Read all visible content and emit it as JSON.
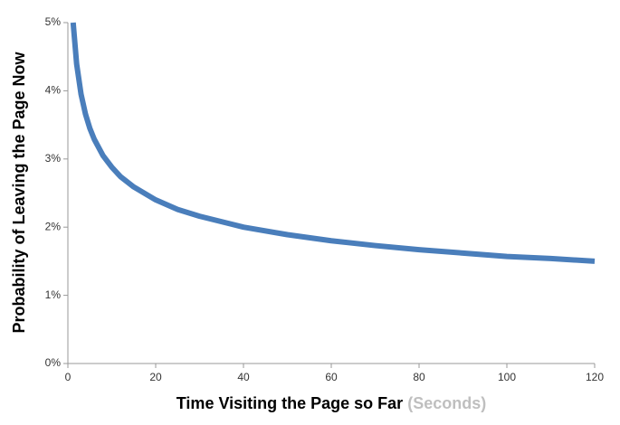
{
  "chart_data": {
    "type": "line",
    "xlabel": "Time Visiting the Page so Far",
    "xlabel_unit": "(Seconds)",
    "ylabel": "Probability of Leaving  the Page Now",
    "x": [
      1.2,
      2,
      3,
      4,
      5,
      6,
      8,
      10,
      12,
      15,
      20,
      25,
      30,
      40,
      50,
      60,
      70,
      80,
      90,
      100,
      110,
      120
    ],
    "series": [
      {
        "name": "Probability of leaving",
        "color": "#4a7ebb",
        "values": [
          5.0,
          4.39,
          3.95,
          3.66,
          3.45,
          3.29,
          3.05,
          2.88,
          2.74,
          2.59,
          2.4,
          2.26,
          2.16,
          2.0,
          1.89,
          1.8,
          1.73,
          1.67,
          1.62,
          1.57,
          1.54,
          1.5
        ]
      }
    ],
    "xlim": [
      0,
      120
    ],
    "xticks": [
      0,
      20,
      40,
      60,
      80,
      100,
      120
    ],
    "ylim": [
      0,
      5
    ],
    "yticks": [
      {
        "value": 0,
        "label": "0%"
      },
      {
        "value": 1,
        "label": "1%"
      },
      {
        "value": 2,
        "label": "2%"
      },
      {
        "value": 3,
        "label": "3%"
      },
      {
        "value": 4,
        "label": "4%"
      },
      {
        "value": 5,
        "label": "5%"
      }
    ]
  }
}
